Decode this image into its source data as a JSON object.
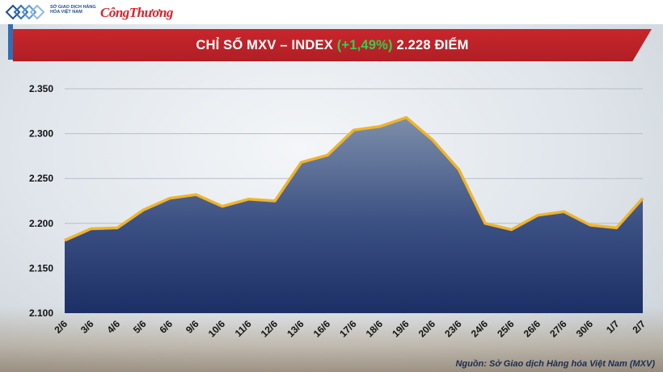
{
  "header": {
    "logo_text": "SỞ GIAO DỊCH HÀNG HÓA VIỆT NAM",
    "brand": "CôngThương"
  },
  "banner": {
    "prefix": "CHỈ SỐ MXV – INDEX ",
    "change": "(+1,49%)",
    "suffix": " 2.228 ĐIỂM"
  },
  "source": "Nguồn: Sở Giao dịch Hàng hóa Việt Nam (MXV)",
  "colors": {
    "banner_red": "#c8262c",
    "change_green": "#2fd14e",
    "line_gold": "#f0b429",
    "area_top": "#7d8eaa",
    "area_bottom": "#1c2f66"
  },
  "chart_data": {
    "type": "area",
    "title": "CHỈ SỐ MXV – INDEX (+1,49%) 2.228 ĐIỂM",
    "categories": [
      "2/6",
      "3/6",
      "4/6",
      "5/6",
      "6/6",
      "9/6",
      "10/6",
      "11/6",
      "12/6",
      "13/6",
      "16/6",
      "17/6",
      "18/6",
      "19/6",
      "20/6",
      "23/6",
      "24/6",
      "25/6",
      "26/6",
      "27/6",
      "30/6",
      "1/7",
      "2/7"
    ],
    "values": [
      2181,
      2194,
      2195,
      2215,
      2228,
      2232,
      2219,
      2227,
      2225,
      2268,
      2276,
      2304,
      2308,
      2318,
      2293,
      2260,
      2200,
      2193,
      2209,
      2213,
      2198,
      2195,
      2228
    ],
    "ylim": [
      2100,
      2350
    ],
    "yticks": [
      2100,
      2150,
      2200,
      2250,
      2300,
      2350
    ],
    "ytick_labels": [
      "2.100",
      "2.150",
      "2.200",
      "2.250",
      "2.300",
      "2.350"
    ],
    "grid": true,
    "legend": "none"
  }
}
